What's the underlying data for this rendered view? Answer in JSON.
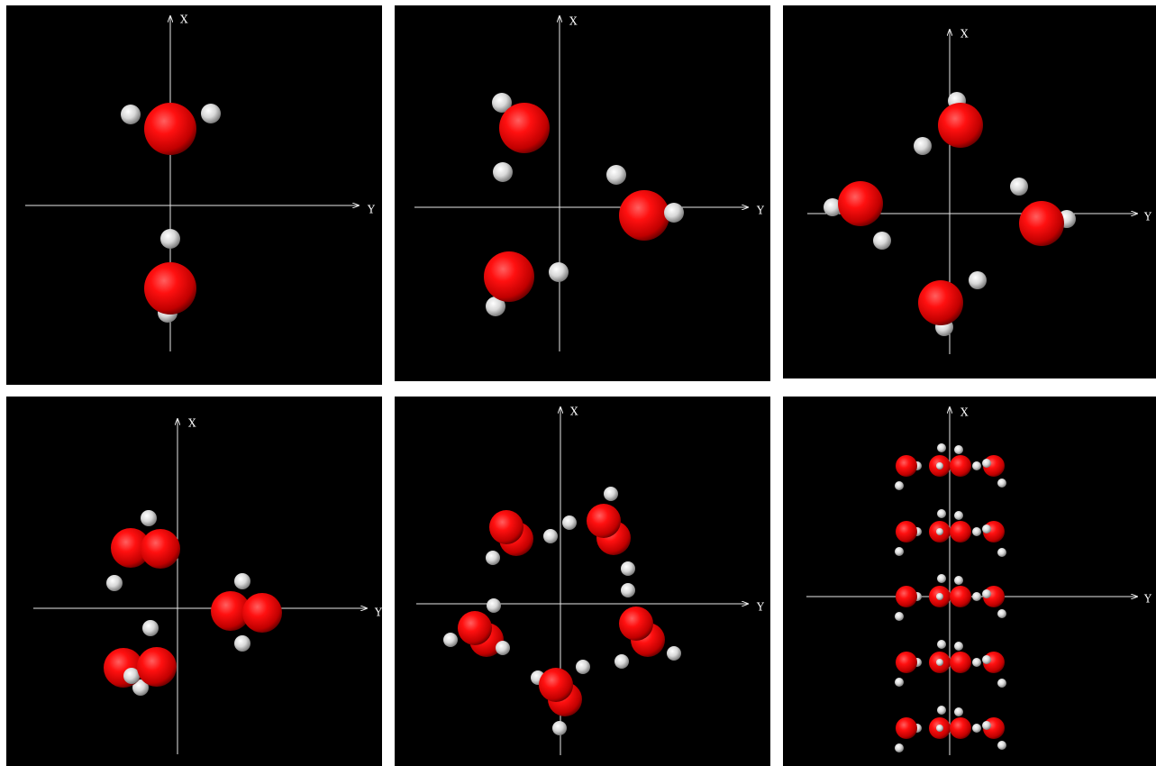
{
  "panels": [
    {
      "x_label": "X",
      "y_label": "Y"
    },
    {
      "x_label": "X",
      "y_label": "Y"
    },
    {
      "x_label": "X",
      "y_label": "Y"
    },
    {
      "x_label": "X",
      "y_label": "Y"
    },
    {
      "x_label": "X",
      "y_label": "Y"
    },
    {
      "x_label": "X",
      "y_label": "Y"
    }
  ]
}
